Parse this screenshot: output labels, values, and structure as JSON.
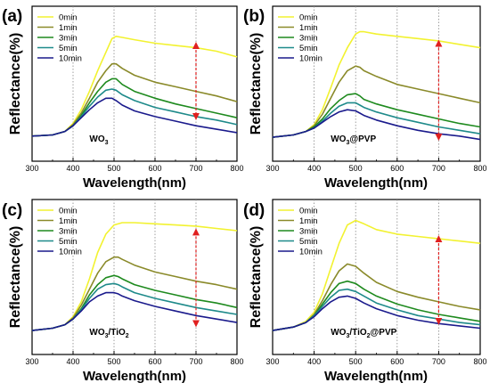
{
  "chart_data": [
    {
      "type": "line",
      "panel": "(a)",
      "sample_html": "WO<tspan class='samp-sub' dy='3'>3</tspan>",
      "sample_text": "WO3",
      "xlabel": "Wavelength(nm)",
      "ylabel": "Reflectance(%)",
      "xlim": [
        300,
        800
      ],
      "xticks": [
        300,
        400,
        500,
        600,
        700,
        800
      ],
      "grid": "vertical dotted at 400, 500, 600, 700",
      "legend": "top-left",
      "annotation": "red double-headed arrow at 700 nm",
      "arrow_x": 700,
      "arrow_y": [
        0.82,
        0.2
      ],
      "series": [
        {
          "name": "0min",
          "color": "#f2f230",
          "x": [
            300,
            350,
            380,
            400,
            420,
            440,
            460,
            480,
            495,
            505,
            520,
            550,
            600,
            650,
            700,
            750,
            800
          ],
          "y": [
            0.03,
            0.04,
            0.07,
            0.14,
            0.26,
            0.42,
            0.6,
            0.76,
            0.88,
            0.9,
            0.89,
            0.87,
            0.84,
            0.82,
            0.8,
            0.77,
            0.72
          ]
        },
        {
          "name": "1min",
          "color": "#8a8a2a",
          "x": [
            300,
            350,
            380,
            400,
            420,
            440,
            460,
            480,
            495,
            505,
            520,
            550,
            600,
            650,
            700,
            750,
            800
          ],
          "y": [
            0.03,
            0.04,
            0.07,
            0.13,
            0.23,
            0.36,
            0.5,
            0.6,
            0.66,
            0.66,
            0.62,
            0.56,
            0.5,
            0.46,
            0.42,
            0.38,
            0.33
          ]
        },
        {
          "name": "3min",
          "color": "#1e8a1e",
          "x": [
            300,
            350,
            380,
            400,
            420,
            440,
            460,
            480,
            495,
            505,
            520,
            550,
            600,
            650,
            700,
            750,
            800
          ],
          "y": [
            0.03,
            0.04,
            0.07,
            0.12,
            0.21,
            0.32,
            0.42,
            0.5,
            0.53,
            0.53,
            0.48,
            0.42,
            0.36,
            0.31,
            0.27,
            0.23,
            0.19
          ]
        },
        {
          "name": "5min",
          "color": "#1e8a8a",
          "x": [
            300,
            350,
            380,
            400,
            420,
            440,
            460,
            480,
            495,
            505,
            520,
            550,
            600,
            650,
            700,
            750,
            800
          ],
          "y": [
            0.03,
            0.04,
            0.07,
            0.12,
            0.2,
            0.29,
            0.37,
            0.43,
            0.44,
            0.43,
            0.39,
            0.34,
            0.28,
            0.24,
            0.2,
            0.17,
            0.13
          ]
        },
        {
          "name": "10min",
          "color": "#1a1a8c",
          "x": [
            300,
            350,
            380,
            400,
            420,
            440,
            460,
            480,
            495,
            505,
            520,
            550,
            600,
            650,
            700,
            750,
            800
          ],
          "y": [
            0.03,
            0.04,
            0.07,
            0.12,
            0.19,
            0.26,
            0.32,
            0.36,
            0.36,
            0.34,
            0.3,
            0.25,
            0.2,
            0.16,
            0.12,
            0.09,
            0.06
          ]
        }
      ]
    },
    {
      "type": "line",
      "panel": "(b)",
      "sample_html": "WO<tspan class='samp-sub' dy='3'>3</tspan><tspan dy='-3'>@PVP</tspan>",
      "sample_text": "WO3@PVP",
      "xlabel": "Wavelength(nm)",
      "ylabel": "Reflectance(%)",
      "xlim": [
        300,
        800
      ],
      "xticks": [
        300,
        400,
        500,
        600,
        700,
        800
      ],
      "grid": "vertical dotted at 400, 500, 600, 700",
      "legend": "top-left",
      "annotation": "red double-headed arrow at 700 nm",
      "arrow_x": 700,
      "arrow_y": [
        0.84,
        0.02
      ],
      "series": [
        {
          "name": "0min",
          "color": "#f2f230",
          "x": [
            300,
            350,
            380,
            400,
            420,
            440,
            460,
            480,
            500,
            510,
            520,
            550,
            600,
            650,
            700,
            750,
            800
          ],
          "y": [
            0.02,
            0.04,
            0.07,
            0.13,
            0.26,
            0.45,
            0.65,
            0.8,
            0.92,
            0.94,
            0.94,
            0.92,
            0.9,
            0.88,
            0.86,
            0.83,
            0.8
          ]
        },
        {
          "name": "1min",
          "color": "#8a8a2a",
          "x": [
            300,
            350,
            380,
            400,
            420,
            440,
            460,
            480,
            500,
            510,
            520,
            550,
            600,
            650,
            700,
            750,
            800
          ],
          "y": [
            0.02,
            0.04,
            0.07,
            0.12,
            0.22,
            0.36,
            0.5,
            0.6,
            0.64,
            0.63,
            0.6,
            0.55,
            0.48,
            0.44,
            0.4,
            0.36,
            0.32
          ]
        },
        {
          "name": "3min",
          "color": "#1e8a1e",
          "x": [
            300,
            350,
            380,
            400,
            420,
            440,
            460,
            480,
            500,
            510,
            520,
            550,
            600,
            650,
            700,
            750,
            800
          ],
          "y": [
            0.02,
            0.04,
            0.07,
            0.11,
            0.18,
            0.27,
            0.34,
            0.39,
            0.4,
            0.38,
            0.35,
            0.31,
            0.26,
            0.22,
            0.18,
            0.14,
            0.11
          ]
        },
        {
          "name": "5min",
          "color": "#1e8a8a",
          "x": [
            300,
            350,
            380,
            400,
            420,
            440,
            460,
            480,
            500,
            510,
            520,
            550,
            600,
            650,
            700,
            750,
            800
          ],
          "y": [
            0.02,
            0.04,
            0.07,
            0.1,
            0.16,
            0.23,
            0.29,
            0.32,
            0.32,
            0.3,
            0.28,
            0.24,
            0.19,
            0.15,
            0.11,
            0.08,
            0.05
          ]
        },
        {
          "name": "10min",
          "color": "#1a1a8c",
          "x": [
            300,
            350,
            380,
            400,
            420,
            440,
            460,
            480,
            500,
            510,
            520,
            550,
            600,
            650,
            700,
            750,
            800
          ],
          "y": [
            0.02,
            0.04,
            0.07,
            0.1,
            0.15,
            0.2,
            0.24,
            0.26,
            0.25,
            0.23,
            0.21,
            0.17,
            0.12,
            0.08,
            0.05,
            0.03,
            0.0
          ]
        }
      ]
    },
    {
      "type": "line",
      "panel": "(c)",
      "sample_html": "WO<tspan class='samp-sub' dy='3'>3</tspan><tspan dy='-3'>/TiO</tspan><tspan class='samp-sub' dy='3'>2</tspan>",
      "sample_text": "WO3/TiO2",
      "xlabel": "Wavelength(nm)",
      "ylabel": "Reflectance(%)",
      "xlim": [
        300,
        800
      ],
      "xticks": [
        300,
        400,
        500,
        600,
        700,
        800
      ],
      "grid": "vertical dotted at 400, 500, 600, 700",
      "legend": "top-left",
      "annotation": "red double-headed arrow at 700 nm",
      "arrow_x": 700,
      "arrow_y": [
        0.88,
        0.08
      ],
      "series": [
        {
          "name": "0min",
          "color": "#f2f230",
          "x": [
            300,
            350,
            380,
            400,
            420,
            440,
            460,
            480,
            500,
            520,
            550,
            600,
            650,
            700,
            750,
            800
          ],
          "y": [
            0.02,
            0.04,
            0.07,
            0.14,
            0.27,
            0.47,
            0.7,
            0.86,
            0.94,
            0.96,
            0.96,
            0.95,
            0.94,
            0.93,
            0.91,
            0.89
          ]
        },
        {
          "name": "1min",
          "color": "#8a8a2a",
          "x": [
            300,
            350,
            380,
            400,
            420,
            440,
            460,
            480,
            500,
            510,
            520,
            550,
            600,
            650,
            700,
            750,
            800
          ],
          "y": [
            0.02,
            0.04,
            0.07,
            0.13,
            0.24,
            0.38,
            0.52,
            0.62,
            0.66,
            0.66,
            0.64,
            0.59,
            0.53,
            0.49,
            0.45,
            0.42,
            0.38
          ]
        },
        {
          "name": "3min",
          "color": "#1e8a1e",
          "x": [
            300,
            350,
            380,
            400,
            420,
            440,
            460,
            480,
            500,
            510,
            520,
            550,
            600,
            650,
            700,
            750,
            800
          ],
          "y": [
            0.02,
            0.04,
            0.07,
            0.12,
            0.21,
            0.33,
            0.42,
            0.48,
            0.5,
            0.49,
            0.47,
            0.42,
            0.37,
            0.33,
            0.29,
            0.26,
            0.22
          ]
        },
        {
          "name": "5min",
          "color": "#1e8a8a",
          "x": [
            300,
            350,
            380,
            400,
            420,
            440,
            460,
            480,
            500,
            510,
            520,
            550,
            600,
            650,
            700,
            750,
            800
          ],
          "y": [
            0.02,
            0.04,
            0.07,
            0.12,
            0.2,
            0.3,
            0.38,
            0.42,
            0.43,
            0.42,
            0.4,
            0.35,
            0.3,
            0.26,
            0.22,
            0.19,
            0.16
          ]
        },
        {
          "name": "10min",
          "color": "#1a1a8c",
          "x": [
            300,
            350,
            380,
            400,
            420,
            440,
            460,
            480,
            500,
            510,
            520,
            550,
            600,
            650,
            700,
            750,
            800
          ],
          "y": [
            0.02,
            0.04,
            0.07,
            0.12,
            0.19,
            0.27,
            0.32,
            0.35,
            0.35,
            0.34,
            0.32,
            0.28,
            0.23,
            0.19,
            0.15,
            0.12,
            0.09
          ]
        }
      ]
    },
    {
      "type": "line",
      "panel": "(d)",
      "sample_html": "WO<tspan class='samp-sub' dy='3'>3</tspan><tspan dy='-3'>/TiO</tspan><tspan class='samp-sub' dy='3'>2</tspan><tspan dy='-3'>@PVP</tspan>",
      "sample_text": "WO3/TiO2@PVP",
      "xlabel": "Wavelength(nm)",
      "ylabel": "Reflectance(%)",
      "xlim": [
        300,
        800
      ],
      "xticks": [
        300,
        400,
        500,
        600,
        700,
        800
      ],
      "grid": "vertical dotted at 400, 500, 600, 700",
      "legend": "top-left",
      "annotation": "red double-headed arrow at 700 nm",
      "arrow_x": 700,
      "arrow_y": [
        0.82,
        0.1
      ],
      "series": [
        {
          "name": "0min",
          "color": "#f2f230",
          "x": [
            300,
            350,
            380,
            400,
            420,
            440,
            460,
            480,
            500,
            520,
            550,
            600,
            650,
            700,
            750,
            800
          ],
          "y": [
            0.02,
            0.05,
            0.1,
            0.18,
            0.34,
            0.56,
            0.78,
            0.94,
            0.98,
            0.95,
            0.9,
            0.86,
            0.84,
            0.82,
            0.8,
            0.78
          ]
        },
        {
          "name": "1min",
          "color": "#8a8a2a",
          "x": [
            300,
            350,
            380,
            400,
            420,
            440,
            460,
            480,
            500,
            520,
            550,
            600,
            650,
            700,
            750,
            800
          ],
          "y": [
            0.02,
            0.05,
            0.09,
            0.16,
            0.28,
            0.42,
            0.54,
            0.6,
            0.58,
            0.52,
            0.44,
            0.36,
            0.31,
            0.27,
            0.23,
            0.2
          ]
        },
        {
          "name": "3min",
          "color": "#1e8a1e",
          "x": [
            300,
            350,
            380,
            400,
            420,
            440,
            460,
            480,
            500,
            520,
            550,
            600,
            650,
            700,
            750,
            800
          ],
          "y": [
            0.02,
            0.05,
            0.09,
            0.15,
            0.25,
            0.35,
            0.43,
            0.45,
            0.43,
            0.38,
            0.32,
            0.25,
            0.2,
            0.16,
            0.13,
            0.1
          ]
        },
        {
          "name": "5min",
          "color": "#1e8a8a",
          "x": [
            300,
            350,
            380,
            400,
            420,
            440,
            460,
            480,
            500,
            520,
            550,
            600,
            650,
            700,
            750,
            800
          ],
          "y": [
            0.02,
            0.05,
            0.09,
            0.15,
            0.23,
            0.31,
            0.37,
            0.38,
            0.36,
            0.32,
            0.26,
            0.2,
            0.15,
            0.12,
            0.09,
            0.07
          ]
        },
        {
          "name": "10min",
          "color": "#1a1a8c",
          "x": [
            300,
            350,
            380,
            400,
            420,
            440,
            460,
            480,
            500,
            520,
            550,
            600,
            650,
            700,
            750,
            800
          ],
          "y": [
            0.02,
            0.05,
            0.09,
            0.14,
            0.21,
            0.27,
            0.31,
            0.32,
            0.3,
            0.26,
            0.21,
            0.15,
            0.11,
            0.08,
            0.06,
            0.04
          ]
        }
      ]
    }
  ]
}
